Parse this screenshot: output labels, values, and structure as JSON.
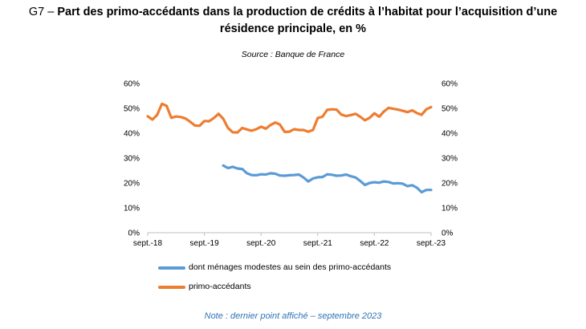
{
  "title": {
    "prefix": "G7 – ",
    "main": "Part des primo-accédants dans la production de crédits à l’habitat pour l’acquisition d’une résidence principale, en %"
  },
  "source": "Source : Banque de France",
  "note": "Note : dernier point affiché – septembre 2023",
  "chart_data": {
    "type": "line",
    "x_tick_labels": [
      "sept.-18",
      "sept.-19",
      "sept.-20",
      "sept.-21",
      "sept.-22",
      "sept.-23"
    ],
    "y_tick_labels": [
      "0%",
      "10%",
      "20%",
      "30%",
      "40%",
      "50%",
      "60%"
    ],
    "ylim": [
      0,
      60
    ],
    "y_unit": "%",
    "right_axis_mirror": true,
    "x_start": "2018-09",
    "x_end": "2023-09",
    "grid": false,
    "legend_position": "bottom",
    "series": [
      {
        "name": "dont ménages modestes au sein des primo-accédants",
        "color": "#5b9bd5",
        "x": [
          "2020-01",
          "2020-02",
          "2020-03",
          "2020-04",
          "2020-05",
          "2020-06",
          "2020-07",
          "2020-08",
          "2020-09",
          "2020-10",
          "2020-11",
          "2020-12",
          "2021-01",
          "2021-02",
          "2021-03",
          "2021-04",
          "2021-05",
          "2021-06",
          "2021-07",
          "2021-08",
          "2021-09",
          "2021-10",
          "2021-11",
          "2021-12",
          "2022-01",
          "2022-02",
          "2022-03",
          "2022-04",
          "2022-05",
          "2022-06",
          "2022-07",
          "2022-08",
          "2022-09",
          "2022-10",
          "2022-11",
          "2022-12",
          "2023-01",
          "2023-02",
          "2023-03",
          "2023-04",
          "2023-05",
          "2023-06",
          "2023-07",
          "2023-08",
          "2023-09"
        ],
        "values": [
          27.0,
          26.0,
          26.5,
          25.8,
          25.6,
          23.9,
          23.2,
          23.1,
          23.5,
          23.4,
          23.9,
          23.7,
          23.0,
          22.9,
          23.1,
          23.2,
          23.4,
          22.2,
          20.6,
          21.8,
          22.3,
          22.4,
          23.5,
          23.3,
          22.9,
          23.0,
          23.4,
          22.7,
          22.2,
          20.8,
          19.2,
          20.0,
          20.3,
          20.1,
          20.6,
          20.4,
          19.8,
          19.9,
          19.7,
          18.7,
          19.1,
          18.1,
          16.3,
          17.2,
          17.2
        ]
      },
      {
        "name": "primo-accédants",
        "color": "#ed7d31",
        "x": [
          "2018-09",
          "2018-10",
          "2018-11",
          "2018-12",
          "2019-01",
          "2019-02",
          "2019-03",
          "2019-04",
          "2019-05",
          "2019-06",
          "2019-07",
          "2019-08",
          "2019-09",
          "2019-10",
          "2019-11",
          "2019-12",
          "2020-01",
          "2020-02",
          "2020-03",
          "2020-04",
          "2020-05",
          "2020-06",
          "2020-07",
          "2020-08",
          "2020-09",
          "2020-10",
          "2020-11",
          "2020-12",
          "2021-01",
          "2021-02",
          "2021-03",
          "2021-04",
          "2021-05",
          "2021-06",
          "2021-07",
          "2021-08",
          "2021-09",
          "2021-10",
          "2021-11",
          "2021-12",
          "2022-01",
          "2022-02",
          "2022-03",
          "2022-04",
          "2022-05",
          "2022-06",
          "2022-07",
          "2022-08",
          "2022-09",
          "2022-10",
          "2022-11",
          "2022-12",
          "2023-01",
          "2023-02",
          "2023-03",
          "2023-04",
          "2023-05",
          "2023-06",
          "2023-07",
          "2023-08",
          "2023-09"
        ],
        "values": [
          46.8,
          45.5,
          47.4,
          51.8,
          51.0,
          46.2,
          46.7,
          46.5,
          45.9,
          44.6,
          43.1,
          43.0,
          44.9,
          44.8,
          46.1,
          47.8,
          45.8,
          42.1,
          40.4,
          40.3,
          42.1,
          41.5,
          41.0,
          41.6,
          42.6,
          41.8,
          43.3,
          44.3,
          43.5,
          40.5,
          40.6,
          41.6,
          41.3,
          41.3,
          40.6,
          41.3,
          46.1,
          46.6,
          49.4,
          49.6,
          49.5,
          47.5,
          46.9,
          47.3,
          47.8,
          46.6,
          45.2,
          46.2,
          48.0,
          46.6,
          48.7,
          50.2,
          49.8,
          49.5,
          49.0,
          48.5,
          49.2,
          48.1,
          47.4,
          49.6,
          50.5
        ]
      }
    ]
  }
}
